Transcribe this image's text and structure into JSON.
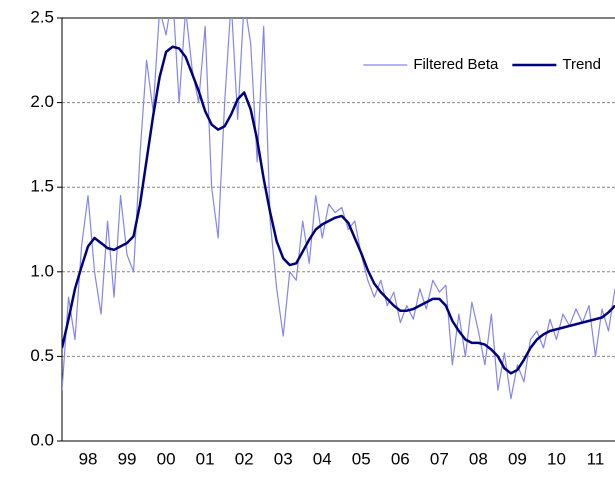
{
  "chart_data": {
    "type": "line",
    "categories": [
      null,
      null,
      null,
      null,
      "98",
      null,
      null,
      null,
      null,
      null,
      "99",
      null,
      null,
      null,
      null,
      null,
      "00",
      null,
      null,
      null,
      null,
      null,
      "01",
      null,
      null,
      null,
      null,
      null,
      "02",
      null,
      null,
      null,
      null,
      null,
      "03",
      null,
      null,
      null,
      null,
      null,
      "04",
      null,
      null,
      null,
      null,
      null,
      "05",
      null,
      null,
      null,
      null,
      null,
      "06",
      null,
      null,
      null,
      null,
      null,
      "07",
      null,
      null,
      null,
      null,
      null,
      "08",
      null,
      null,
      null,
      null,
      null,
      "09",
      null,
      null,
      null,
      null,
      null,
      "10",
      null,
      null,
      null,
      null,
      null,
      "11",
      null,
      null,
      null
    ],
    "series": [
      {
        "name": "Filtered Beta",
        "color": "#8585f0",
        "values": [
          0.3,
          0.85,
          0.6,
          1.15,
          1.45,
          1.0,
          0.75,
          1.3,
          0.85,
          1.45,
          1.1,
          1.0,
          1.7,
          2.25,
          1.95,
          2.55,
          2.4,
          2.65,
          2.0,
          2.55,
          2.2,
          2.0,
          2.45,
          1.5,
          1.2,
          2.0,
          2.6,
          1.9,
          2.6,
          2.35,
          1.65,
          2.45,
          1.3,
          0.9,
          0.62,
          1.0,
          0.95,
          1.3,
          1.05,
          1.45,
          1.2,
          1.4,
          1.35,
          1.38,
          1.25,
          1.3,
          1.1,
          0.95,
          0.85,
          0.95,
          0.8,
          0.88,
          0.7,
          0.8,
          0.72,
          0.9,
          0.78,
          0.95,
          0.88,
          0.92,
          0.45,
          0.75,
          0.5,
          0.82,
          0.65,
          0.45,
          0.75,
          0.3,
          0.52,
          0.25,
          0.45,
          0.35,
          0.6,
          0.65,
          0.55,
          0.72,
          0.6,
          0.75,
          0.68,
          0.78,
          0.7,
          0.8,
          0.5,
          0.78,
          0.65,
          0.9
        ]
      },
      {
        "name": "Trend",
        "color": "#00007f",
        "values": [
          0.55,
          0.72,
          0.9,
          1.03,
          1.15,
          1.2,
          1.17,
          1.14,
          1.13,
          1.15,
          1.17,
          1.21,
          1.4,
          1.66,
          1.92,
          2.15,
          2.3,
          2.33,
          2.32,
          2.27,
          2.17,
          2.07,
          1.95,
          1.87,
          1.84,
          1.86,
          1.93,
          2.02,
          2.06,
          1.96,
          1.78,
          1.55,
          1.35,
          1.18,
          1.08,
          1.04,
          1.05,
          1.12,
          1.19,
          1.25,
          1.28,
          1.3,
          1.32,
          1.33,
          1.29,
          1.2,
          1.11,
          1.01,
          0.93,
          0.88,
          0.84,
          0.8,
          0.77,
          0.77,
          0.78,
          0.8,
          0.82,
          0.84,
          0.84,
          0.8,
          0.71,
          0.65,
          0.6,
          0.58,
          0.58,
          0.57,
          0.54,
          0.5,
          0.43,
          0.4,
          0.42,
          0.48,
          0.55,
          0.6,
          0.63,
          0.65,
          0.66,
          0.67,
          0.68,
          0.69,
          0.7,
          0.71,
          0.72,
          0.73,
          0.76,
          0.8
        ]
      }
    ],
    "ylim": [
      0,
      2.5
    ],
    "yticks": [
      {
        "value": 0,
        "label": "0.0"
      },
      0.5,
      {
        "value": 1,
        "label": "1.0"
      },
      1.5,
      {
        "value": 2,
        "label": "2.0"
      },
      2.5
    ],
    "grid": true,
    "legend": "upper right"
  }
}
